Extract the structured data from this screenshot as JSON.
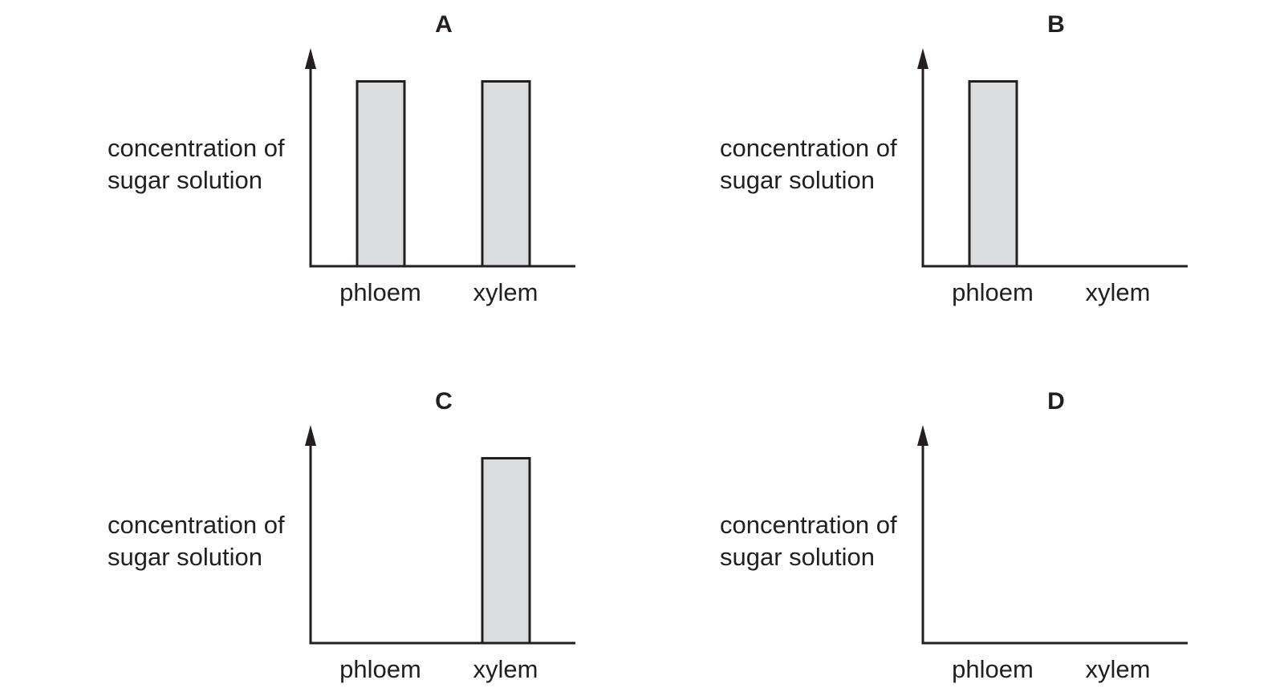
{
  "chart_data": [
    {
      "type": "bar",
      "panel_label": "A",
      "categories": [
        "phloem",
        "xylem"
      ],
      "values": [
        1,
        1
      ],
      "ylabel_lines": [
        "concentration of",
        "sugar solution"
      ],
      "ylim": [
        0,
        1.18
      ],
      "bar_color": "#dcddde",
      "grid": false
    },
    {
      "type": "bar",
      "panel_label": "B",
      "categories": [
        "phloem",
        "xylem"
      ],
      "values": [
        1,
        0
      ],
      "ylabel_lines": [
        "concentration of",
        "sugar solution"
      ],
      "ylim": [
        0,
        1.18
      ],
      "bar_color": "#dcddde",
      "grid": false
    },
    {
      "type": "bar",
      "panel_label": "C",
      "categories": [
        "phloem",
        "xylem"
      ],
      "values": [
        0,
        1
      ],
      "ylabel_lines": [
        "concentration of",
        "sugar solution"
      ],
      "ylim": [
        0,
        1.18
      ],
      "bar_color": "#dcddde",
      "grid": false
    },
    {
      "type": "bar",
      "panel_label": "D",
      "categories": [
        "phloem",
        "xylem"
      ],
      "values": [
        0,
        0
      ],
      "ylabel_lines": [
        "concentration of",
        "sugar solution"
      ],
      "ylim": [
        0,
        1.18
      ],
      "bar_color": "#dcddde",
      "grid": false
    }
  ]
}
